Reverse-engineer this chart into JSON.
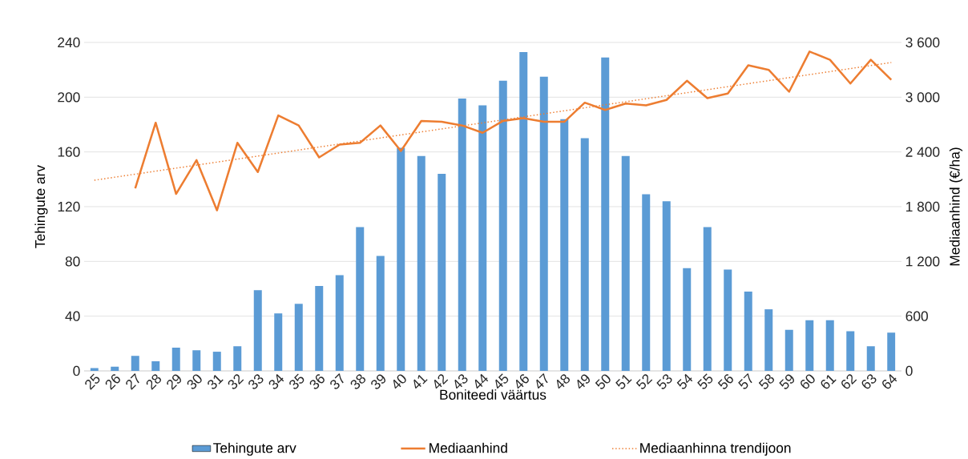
{
  "chart_data": {
    "type": "bar",
    "xlabel": "Boniteedi väärtus",
    "ylabel": "Tehingute arv",
    "y2label": "Mediaanhind (€/ha)",
    "x": [
      25,
      26,
      27,
      28,
      29,
      30,
      31,
      32,
      33,
      34,
      35,
      36,
      37,
      38,
      39,
      40,
      41,
      42,
      43,
      44,
      45,
      46,
      47,
      48,
      49,
      50,
      51,
      52,
      53,
      54,
      55,
      56,
      57,
      58,
      59,
      60,
      61,
      62,
      63,
      64
    ],
    "xlim": [
      24.5,
      64.5
    ],
    "xticks": [
      25,
      26,
      27,
      28,
      29,
      30,
      31,
      32,
      33,
      34,
      35,
      36,
      37,
      38,
      39,
      40,
      41,
      42,
      43,
      44,
      45,
      46,
      47,
      48,
      49,
      50,
      51,
      52,
      53,
      54,
      55,
      56,
      57,
      58,
      59,
      60,
      61,
      62,
      63,
      64
    ],
    "series": [
      {
        "name": "Tehingute arv",
        "color": "#5b9bd5",
        "values": [
          2,
          3,
          11,
          7,
          17,
          15,
          14,
          18,
          59,
          42,
          49,
          62,
          70,
          105,
          84,
          163,
          157,
          144,
          199,
          194,
          212,
          233,
          215,
          184,
          170,
          229,
          157,
          129,
          124,
          75,
          105,
          74,
          58,
          45,
          30,
          37,
          37,
          29,
          18,
          28
        ]
      },
      {
        "name": "Mediaanhind",
        "type": "line",
        "axis": "y2",
        "color": "#ed7d31",
        "x": [
          27,
          28,
          29,
          30,
          31,
          32,
          33,
          34,
          35,
          36,
          37,
          38,
          39,
          40,
          41,
          42,
          43,
          44,
          45,
          46,
          47,
          48,
          49,
          50,
          51,
          52,
          53,
          54,
          55,
          56,
          57,
          58,
          59,
          60,
          61,
          62,
          63,
          64
        ],
        "values": [
          2000,
          2720,
          1940,
          2310,
          1760,
          2500,
          2180,
          2800,
          2690,
          2340,
          2480,
          2500,
          2690,
          2410,
          2740,
          2730,
          2690,
          2610,
          2740,
          2770,
          2730,
          2730,
          2940,
          2860,
          2930,
          2910,
          2970,
          3180,
          2990,
          3040,
          3350,
          3300,
          3060,
          3500,
          3410,
          3150,
          3410,
          3190
        ]
      },
      {
        "name": "Mediaanhinna trendijoon",
        "type": "line",
        "axis": "y2",
        "line_style": "dotted",
        "color": "#ed7d31",
        "x": [
          25,
          64
        ],
        "values": [
          2090,
          3380
        ]
      }
    ],
    "ylim": [
      0,
      240
    ],
    "yticks": [
      0,
      40,
      80,
      120,
      160,
      200,
      240
    ],
    "y2lim": [
      0,
      3600
    ],
    "y2ticks": [
      0,
      600,
      {
        "value": 1200,
        "label": "1 200"
      },
      {
        "value": 1800,
        "label": "1 800"
      },
      {
        "value": 2400,
        "label": "2 400"
      },
      {
        "value": 3000,
        "label": "3 000"
      },
      {
        "value": 3600,
        "label": "3 600"
      }
    ],
    "grid": "y",
    "legend": "bottom",
    "marker": "none"
  }
}
